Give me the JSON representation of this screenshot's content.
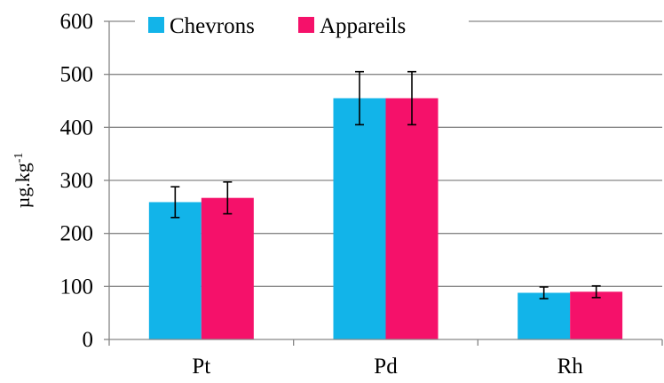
{
  "chart_data": {
    "type": "bar",
    "categories": [
      "Pt",
      "Pd",
      "Rh"
    ],
    "series": [
      {
        "name": "Chevrons",
        "color": "#12B4E9",
        "values": [
          259,
          455,
          88
        ],
        "errors": [
          29,
          50,
          11
        ]
      },
      {
        "name": "Appareils",
        "color": "#F5116A",
        "values": [
          267,
          455,
          90
        ],
        "errors": [
          30,
          50,
          11
        ]
      }
    ],
    "xlabel": "",
    "ylabel": {
      "base": "µg.kg",
      "superscript": "-1"
    },
    "ylim": [
      0,
      600
    ],
    "yticks": [
      "0",
      "100",
      "200",
      "300",
      "400",
      "500",
      "600"
    ],
    "grid": true,
    "legend": "top"
  }
}
